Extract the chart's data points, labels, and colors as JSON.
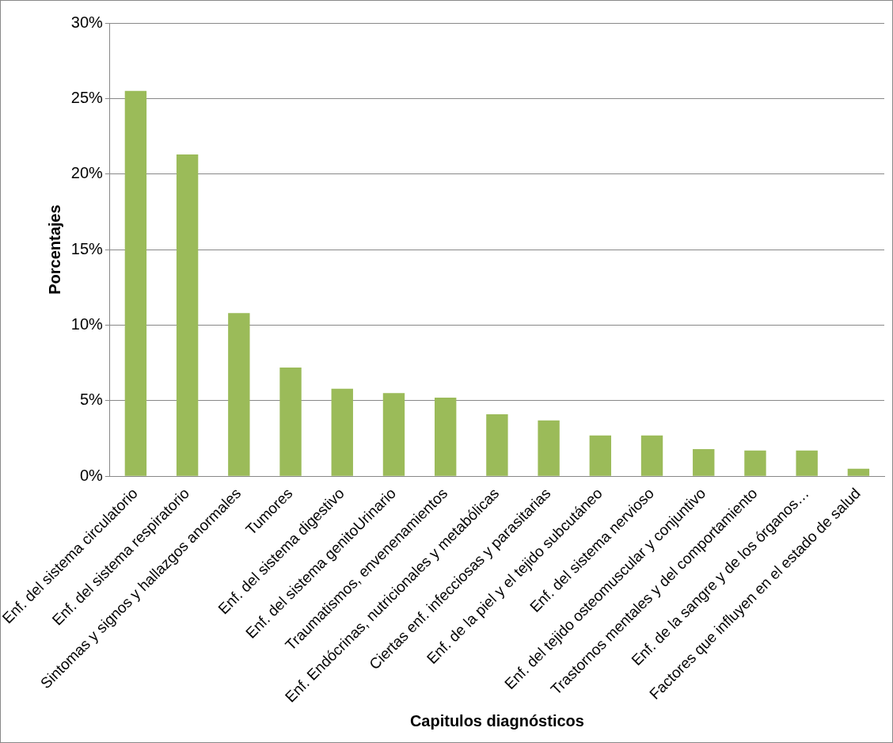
{
  "chart_data": {
    "type": "bar",
    "xlabel": "Capitulos diagnósticos",
    "ylabel": "Porcentajes",
    "categories": [
      "Enf. del sistema circulatorio",
      "Enf. del sistema respiratorio",
      "Sintomas y signos y hallazgos anormales",
      "Tumores",
      "Enf. del sistema digestivo",
      "Enf. del sistema genitoUrinario",
      "Traumatismos, envenenamientos",
      "Enf. Endócrinas, nutricionales y metabólicas",
      "Ciertas enf. infecciosas y parasitarias",
      "Enf. de la piel y el tejido subcutáneo",
      "Enf. del sistema nervioso",
      "Enf. del tejido osteomuscular y conjuntivo",
      "Trastornos mentales y del comportamiento",
      "Enf. de la sangre y de los órganos…",
      "Factores que influyen en el estado de salud"
    ],
    "values": [
      25.5,
      21.3,
      10.8,
      7.2,
      5.8,
      5.5,
      5.2,
      4.1,
      3.7,
      2.7,
      2.7,
      1.8,
      1.7,
      1.7,
      0.5
    ],
    "color": "#9bbb59",
    "ylim": [
      0,
      30
    ],
    "yticks": [
      {
        "value": 0,
        "label": "0%"
      },
      {
        "value": 5,
        "label": "5%"
      },
      {
        "value": 10,
        "label": "10%"
      },
      {
        "value": 15,
        "label": "15%"
      },
      {
        "value": 20,
        "label": "20%"
      },
      {
        "value": 25,
        "label": "25%"
      },
      {
        "value": 30,
        "label": "30%"
      }
    ],
    "grid": "y",
    "legend": false
  }
}
